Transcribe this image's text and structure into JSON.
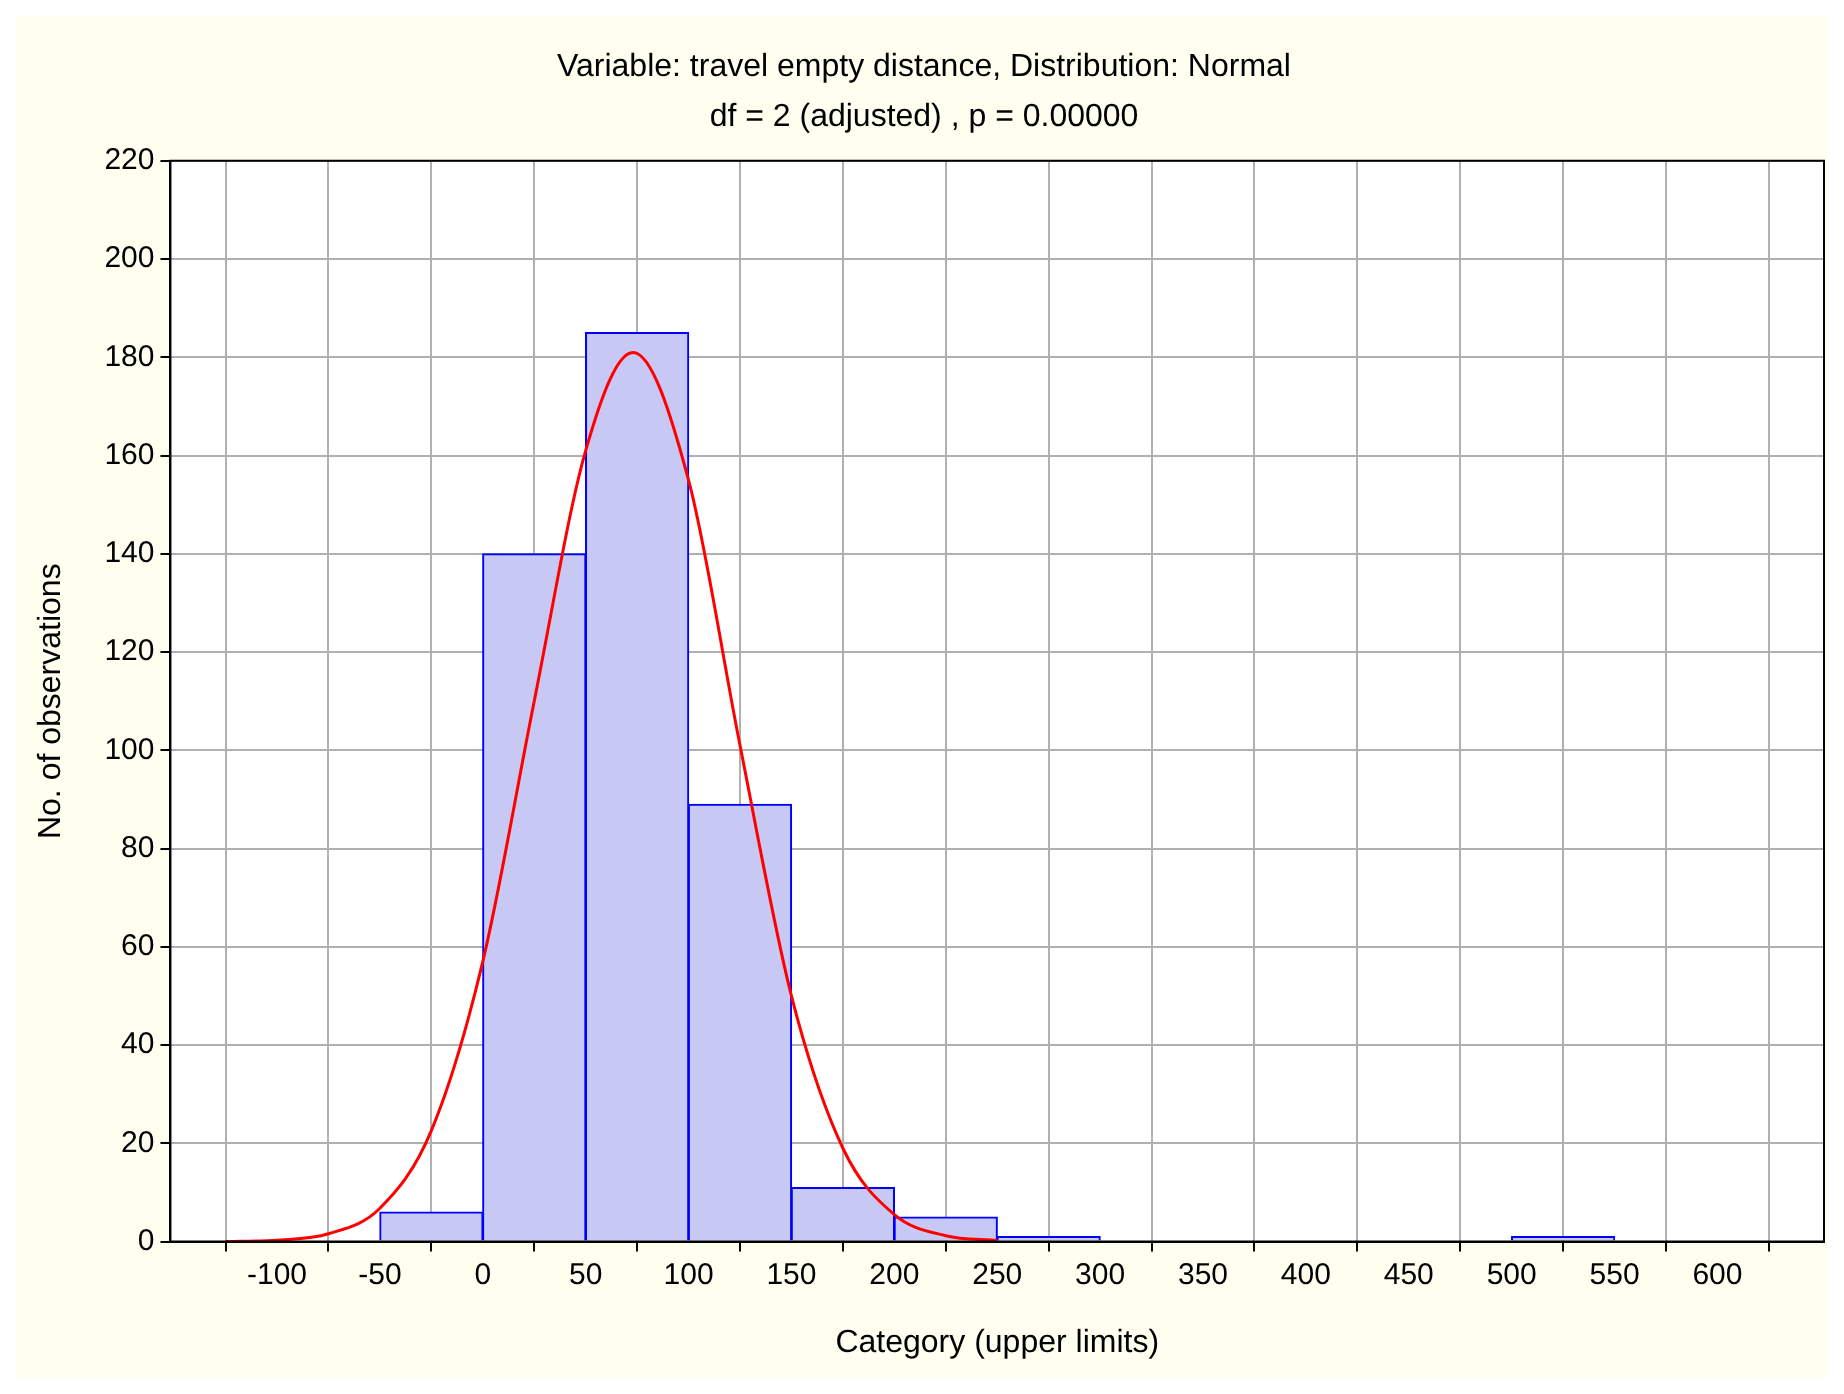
{
  "chart_data": {
    "type": "histogram",
    "title": "Variable: travel empty distance, Distribution: Normal",
    "subtitle": "df = 2 (adjusted) , p = 0.00000",
    "xlabel": "Category (upper limits)",
    "ylabel": "No. of observations",
    "bins": [
      -50,
      0,
      50,
      100,
      150,
      200,
      250,
      300,
      350,
      400,
      450,
      500,
      550,
      600
    ],
    "values": [
      6,
      140,
      185,
      89,
      11,
      5,
      1,
      0,
      0,
      0,
      0,
      1,
      0
    ],
    "color": "#c8c8f4",
    "series": [
      {
        "type": "line",
        "color": "#ff0000",
        "x": [
          -125,
          -100,
          -75,
          -50,
          -25,
          0,
          25,
          50,
          73,
          100,
          125,
          150,
          175,
          200,
          225,
          250
        ],
        "values": [
          0,
          0.3,
          1.6,
          6.8,
          22.6,
          57,
          110,
          161,
          181,
          155,
          101,
          50,
          19,
          5.5,
          1.2,
          0.2
        ]
      }
    ],
    "xlim": [
      -125,
      625
    ],
    "xticks": [
      -100,
      -50,
      0,
      50,
      100,
      150,
      200,
      250,
      300,
      350,
      400,
      450,
      500,
      550,
      600
    ],
    "ylim": [
      0,
      220
    ],
    "yticks": [
      0,
      20,
      40,
      60,
      80,
      100,
      120,
      140,
      160,
      180,
      200,
      220
    ],
    "grid": true,
    "legend": false
  }
}
